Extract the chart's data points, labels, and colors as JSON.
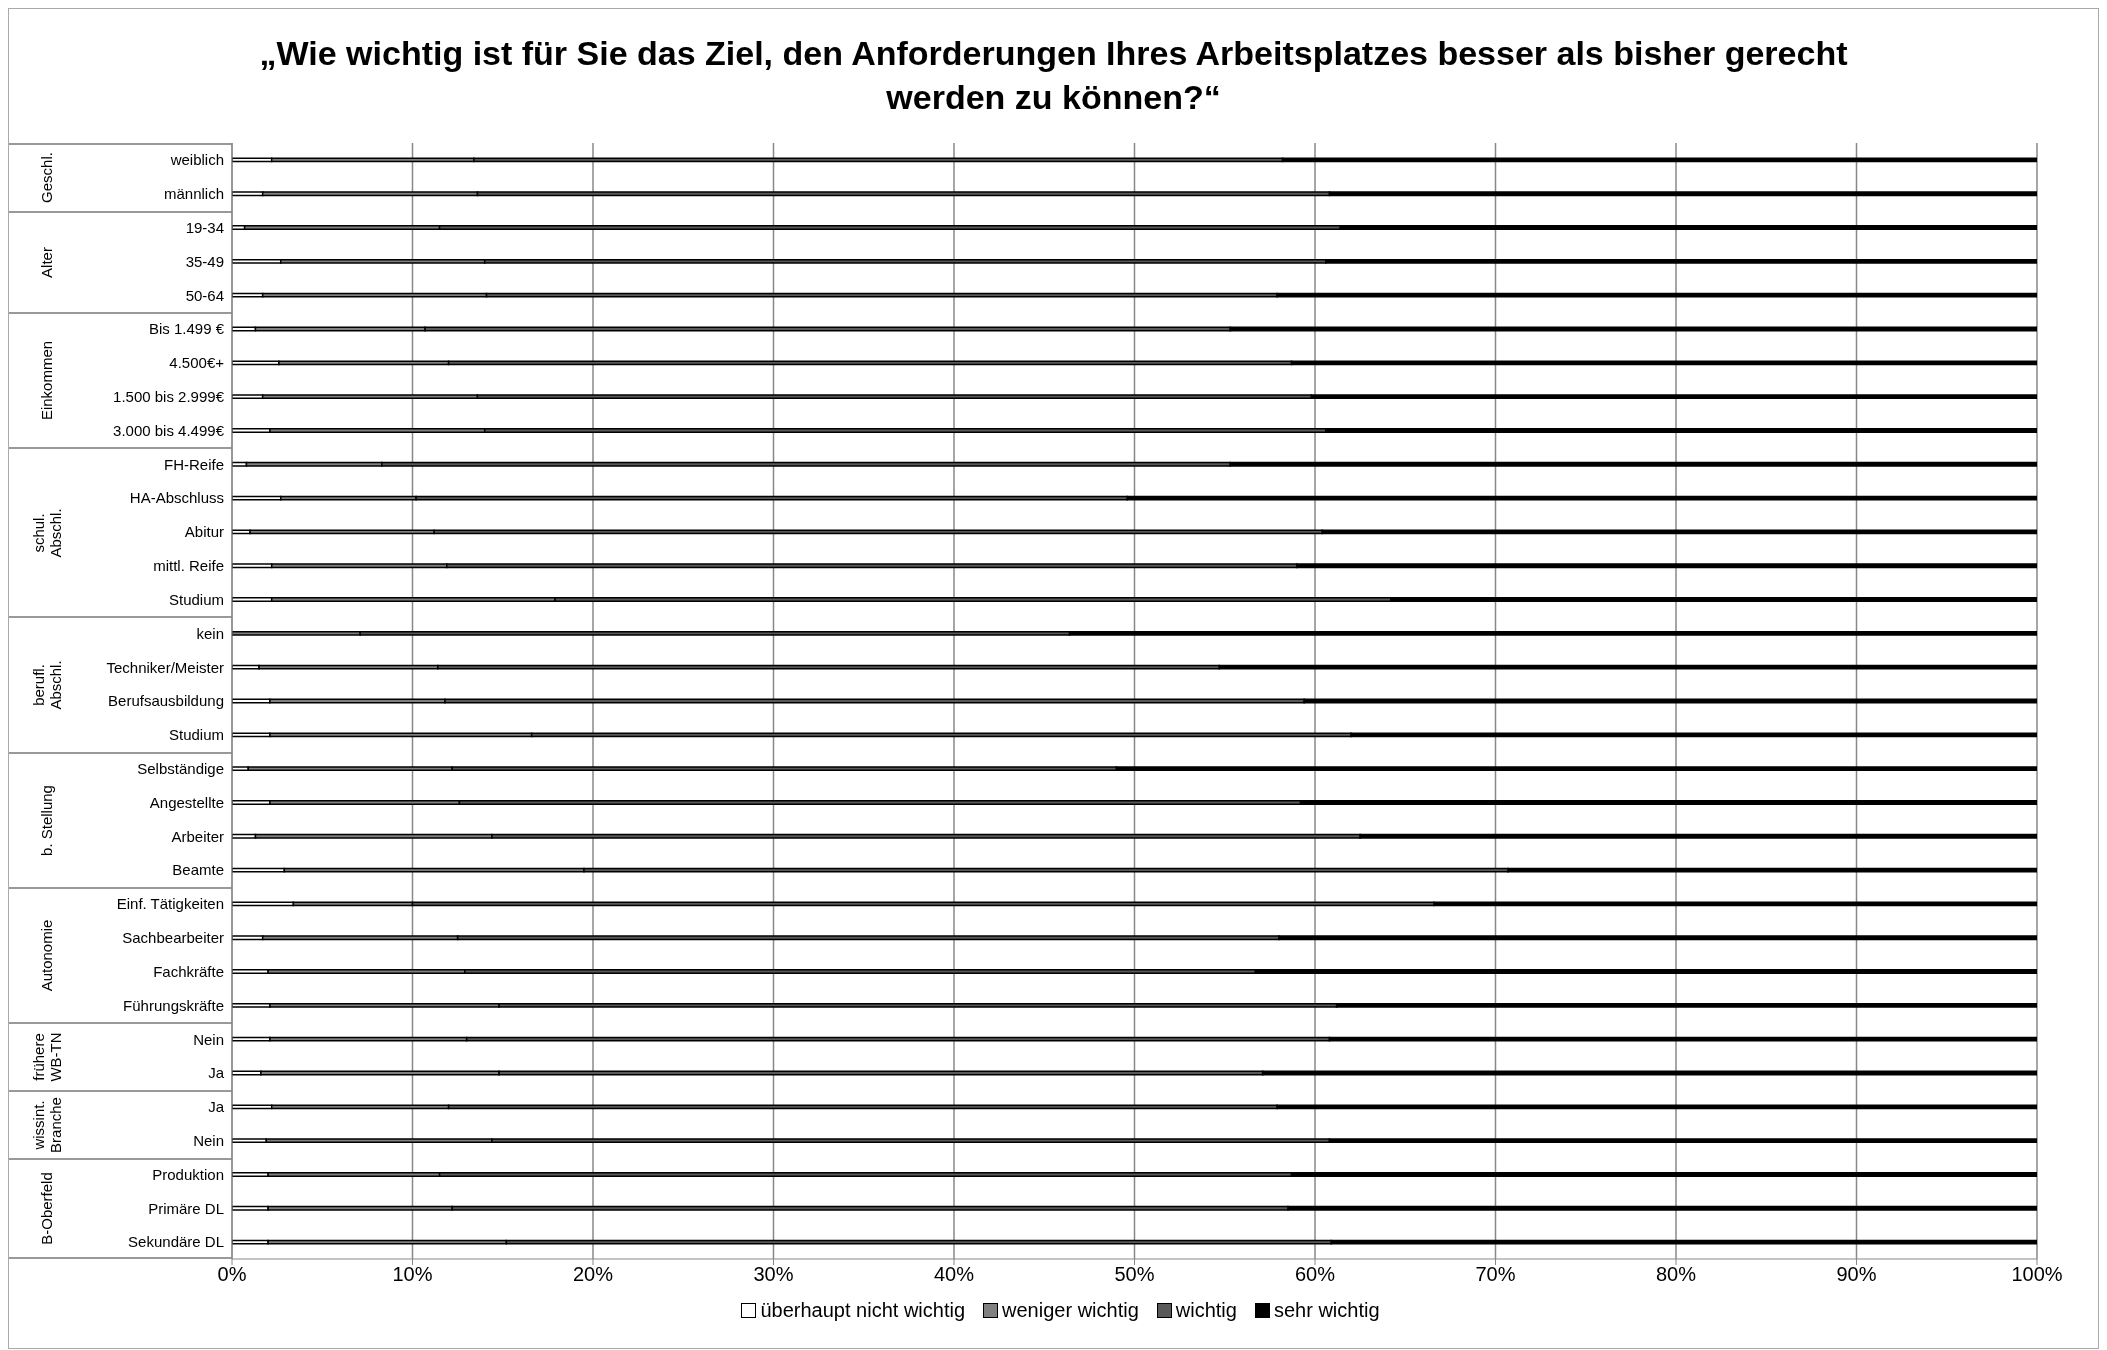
{
  "chart_data": {
    "type": "bar",
    "orientation": "horizontal",
    "stacked": true,
    "title": "„Wie wichtig ist für Sie das Ziel, den Anforderungen Ihres Arbeitsplatzes besser als bisher gerecht werden zu können?“",
    "categories": [
      "weiblich",
      "männlich",
      "19-34",
      "35-49",
      "50-64",
      "Bis 1.499 €",
      "4.500€+",
      "1.500 bis 2.999€",
      "3.000 bis 4.499€",
      "FH-Reife",
      "HA-Abschluss",
      "Abitur",
      "mittl. Reife",
      "Studium",
      "kein",
      "Techniker/Meister",
      "Berufsausbildung",
      "Studium",
      "Selbständige",
      "Angestellte",
      "Arbeiter",
      "Beamte",
      "Einf. Tätigkeiten",
      "Sachbearbeiter",
      "Fachkräfte",
      "Führungskräfte",
      "Nein",
      "Ja",
      "Ja",
      "Nein",
      "Produktion",
      "Primäre DL",
      "Sekundäre DL"
    ],
    "series": [
      {
        "name": "überhaupt nicht wichtig",
        "color": "#ffffff",
        "values": [
          2.2,
          1.7,
          0.7,
          2.7,
          1.7,
          1.3,
          2.6,
          1.7,
          2.1,
          0.8,
          2.7,
          1.0,
          2.2,
          2.2,
          0,
          1.5,
          2.1,
          2.1,
          0.9,
          2.1,
          1.3,
          2.9,
          3.4,
          1.7,
          2.0,
          2.1,
          2.1,
          1.6,
          2.2,
          1.9,
          2.0,
          2.0,
          2.0
        ]
      },
      {
        "name": "weniger wichtig",
        "color": "#808080",
        "values": [
          11.2,
          11.9,
          10.8,
          11.3,
          12.4,
          9.4,
          9.4,
          11.9,
          11.9,
          7.5,
          7.5,
          10.2,
          9.7,
          15.7,
          7.1,
          9.9,
          9.7,
          14.5,
          11.3,
          10.5,
          13.1,
          16.6,
          6.6,
          10.8,
          10.9,
          12.7,
          10.9,
          13.2,
          9.8,
          12.5,
          9.5,
          10.2,
          13.2
        ]
      },
      {
        "name": "wichtig",
        "color": "#595959",
        "values": [
          44.8,
          47.2,
          49.9,
          46.6,
          43.8,
          44.6,
          46.7,
          46.2,
          46.6,
          47.0,
          39.4,
          49.2,
          47.1,
          46.3,
          39.3,
          43.3,
          47.6,
          45.4,
          36.8,
          46.6,
          48.1,
          51.2,
          56.6,
          45.5,
          43.8,
          46.4,
          47.8,
          42.3,
          45.9,
          46.4,
          47.2,
          46.3,
          45.7
        ]
      },
      {
        "name": "sehr wichtig",
        "color": "#000000",
        "values": [
          41.8,
          39.2,
          38.6,
          39.4,
          42.1,
          44.7,
          41.3,
          40.2,
          39.4,
          44.7,
          50.4,
          39.6,
          41.0,
          35.8,
          53.6,
          45.3,
          40.6,
          38.0,
          51.0,
          40.8,
          37.5,
          29.3,
          33.4,
          42.0,
          43.3,
          38.8,
          39.2,
          42.9,
          42.1,
          39.2,
          41.3,
          41.5,
          39.1
        ]
      }
    ],
    "xlim": [
      0,
      100
    ],
    "xticks": [
      {
        "value": 0,
        "label": "0%"
      },
      {
        "value": 10,
        "label": "10%"
      },
      {
        "value": 20,
        "label": "20%"
      },
      {
        "value": 30,
        "label": "30%"
      },
      {
        "value": 40,
        "label": "40%"
      },
      {
        "value": 50,
        "label": "50%"
      },
      {
        "value": 60,
        "label": "60%"
      },
      {
        "value": 70,
        "label": "70%"
      },
      {
        "value": 80,
        "label": "80%"
      },
      {
        "value": 90,
        "label": "90%"
      },
      {
        "value": 100,
        "label": "100%"
      }
    ],
    "grid": "x",
    "legend": "bottom",
    "annotations": [
      "Geschl.",
      "Alter",
      "Einkommen",
      "schul. Abschl.",
      "berufl. Abschl.",
      "b. Stellung",
      "Autonomie",
      "frühere WB-TN",
      "wissint. Branche",
      "B-Oberfeld"
    ]
  }
}
